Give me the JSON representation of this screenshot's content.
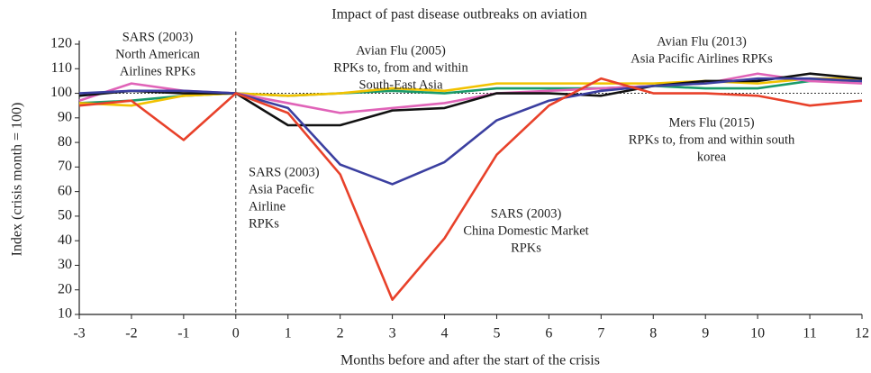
{
  "chart_data": {
    "type": "line",
    "title": "Impact of past disease outbreaks on aviation",
    "x_label": "Months before and after the start of the crisis",
    "y_label": "Index (crisis month = 100)",
    "x": [
      -3,
      -2,
      -1,
      0,
      1,
      2,
      3,
      4,
      5,
      6,
      7,
      8,
      9,
      10,
      11,
      12
    ],
    "xlim": [
      -3,
      12
    ],
    "xticks": [
      -3,
      -2,
      -1,
      0,
      1,
      2,
      3,
      4,
      5,
      6,
      7,
      8,
      9,
      10,
      11,
      12
    ],
    "ylim": [
      10,
      120
    ],
    "yticks": [
      10,
      20,
      30,
      40,
      50,
      60,
      70,
      80,
      90,
      100,
      110,
      120
    ],
    "reference_y": 100,
    "reference_x": 0,
    "series": [
      {
        "color": "#1a9b6a",
        "values": [
          96,
          97,
          99,
          100,
          99,
          100,
          101,
          100,
          102,
          102,
          102,
          103,
          102,
          102,
          105,
          105
        ]
      },
      {
        "color": "#f2c200",
        "values": [
          96,
          95,
          99,
          100,
          99,
          100,
          102,
          101,
          104,
          104,
          104,
          104,
          105,
          104,
          106,
          106
        ]
      },
      {
        "color": "#e063b8",
        "values": [
          97,
          104,
          101,
          100,
          96,
          92,
          94,
          96,
          100,
          101,
          102,
          103,
          104,
          108,
          105,
          104
        ]
      },
      {
        "color": "#111111",
        "values": [
          99,
          101,
          100,
          100,
          87,
          87,
          93,
          94,
          100,
          100,
          99,
          103,
          105,
          105,
          108,
          106
        ]
      },
      {
        "color": "#3b3fa0",
        "values": [
          100,
          101,
          101,
          100,
          94,
          71,
          63,
          72,
          89,
          97,
          101,
          103,
          104,
          106,
          106,
          105
        ]
      },
      {
        "color": "#e8412a",
        "values": [
          95,
          97,
          81,
          100,
          92,
          67,
          16,
          41,
          75,
          95,
          106,
          100,
          100,
          99,
          95,
          97
        ]
      }
    ],
    "annotations": [
      [
        "SARS (2003)",
        "North American",
        "Airlines RPKs"
      ],
      [
        "Avian Flu (2005)",
        "RPKs to, from and within",
        "South-East Asia"
      ],
      [
        "Avian Flu (2013)",
        "Asia Pacific Airlines RPKs"
      ],
      [
        "Mers Flu (2015)",
        "RPKs to, from and within south",
        "korea"
      ],
      [
        "SARS (2003)",
        "Asia Pacefic",
        "Airline",
        "RPKs"
      ],
      [
        "SARS (2003)",
        "China Domestic Market",
        "RPKs"
      ]
    ]
  }
}
